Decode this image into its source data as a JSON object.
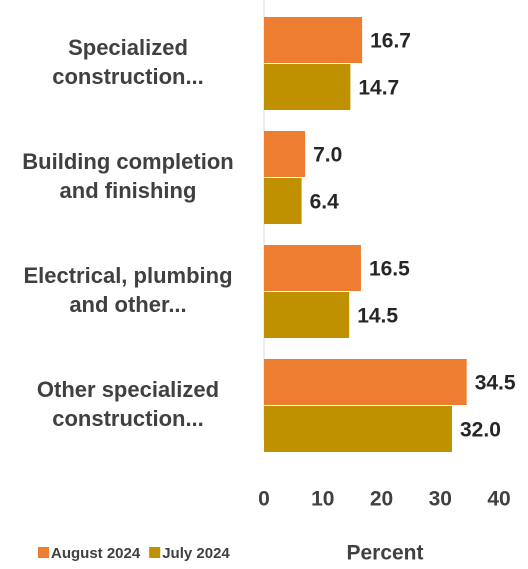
{
  "chart_data": {
    "type": "bar",
    "orientation": "horizontal",
    "categories": [
      "Specialized\nconstruction...",
      "Building completion\nand finishing",
      "Electrical, plumbing\nand other...",
      "Other specialized\nconstruction..."
    ],
    "series": [
      {
        "name": "August 2024",
        "color": "#ED7D31",
        "values": [
          16.7,
          7.0,
          16.5,
          34.5
        ],
        "value_labels": [
          "16.7",
          "7.0",
          "16.5",
          "34.5"
        ]
      },
      {
        "name": "July 2024",
        "color": "#BF9000",
        "values": [
          14.7,
          6.4,
          14.5,
          32.0
        ],
        "value_labels": [
          "14.7",
          "6.4",
          "14.5",
          "32.0"
        ]
      }
    ],
    "xlabel": "Percent",
    "xlim": [
      0,
      40
    ],
    "xticks": [
      0,
      10,
      20,
      30,
      40
    ],
    "grid": false,
    "legend": "bottom-left"
  }
}
